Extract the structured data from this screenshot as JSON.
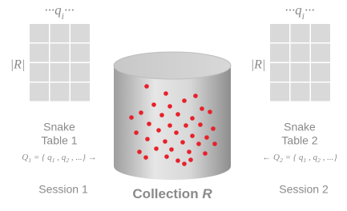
{
  "left": {
    "query_label": [
      "···q",
      "i",
      "···"
    ],
    "size_label": "|R|",
    "table_title": [
      "Snake",
      "Table 1"
    ],
    "query_set": [
      "Q",
      "1",
      " = { q",
      "1",
      " , q",
      "2",
      " , ...} →"
    ],
    "session": "Session 1"
  },
  "right": {
    "query_label": [
      "···q",
      "i",
      "···"
    ],
    "size_label": "|R|",
    "table_title": [
      "Snake",
      "Table 2"
    ],
    "query_set": [
      "← Q",
      "2",
      " = { q",
      "1",
      " , q",
      "2",
      " , ...}"
    ],
    "session": "Session 2"
  },
  "collection": [
    "Collection ",
    "R"
  ]
}
